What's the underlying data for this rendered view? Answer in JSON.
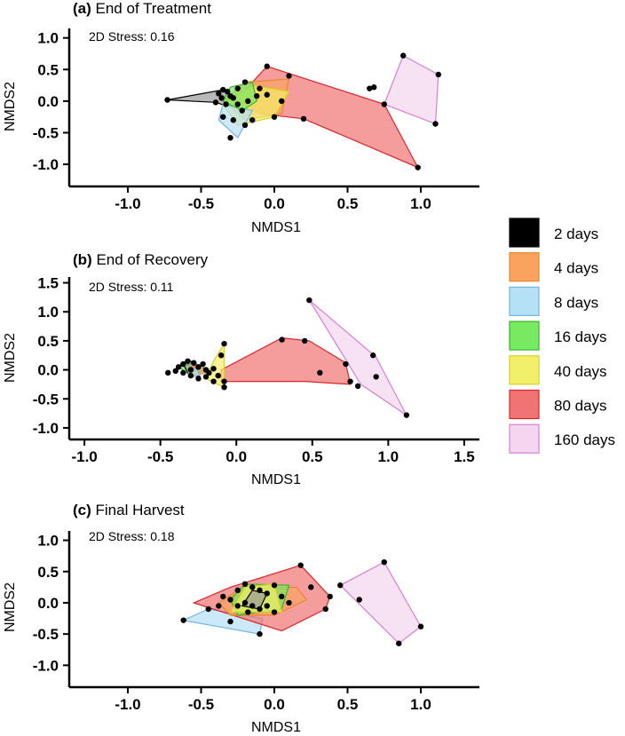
{
  "chart_data": [
    {
      "type": "scatter",
      "panel_label": "(a)",
      "title": "End of Treatment",
      "stress_text": "2D Stress: 0.16",
      "xlabel": "NMDS1",
      "ylabel": "NMDS2",
      "xlim": [
        -1.4,
        1.4
      ],
      "ylim": [
        -1.35,
        1.15
      ],
      "xticks": [
        -1.0,
        -0.5,
        0.0,
        0.5,
        1.0
      ],
      "xtick_labels": [
        "-1.0",
        "-0.5",
        "0.0",
        "0.5",
        "1.0"
      ],
      "yticks": [
        1.0,
        0.5,
        0.0,
        -0.5,
        -1.0
      ],
      "ytick_labels": [
        "1.0",
        "0.5",
        "0.0",
        "-0.5",
        "-1.0"
      ],
      "hulls": [
        {
          "group": "2 days",
          "points": [
            [
              -0.73,
              0.02
            ],
            [
              -0.35,
              0.18
            ],
            [
              -0.3,
              0.08
            ],
            [
              -0.32,
              -0.08
            ],
            [
              -0.4,
              -0.02
            ]
          ]
        },
        {
          "group": "80 days",
          "points": [
            [
              -0.05,
              0.55
            ],
            [
              0.75,
              -0.05
            ],
            [
              0.98,
              -1.05
            ],
            [
              0.2,
              -0.28
            ],
            [
              -0.1,
              -0.2
            ],
            [
              -0.25,
              0.05
            ],
            [
              -0.15,
              0.3
            ]
          ]
        },
        {
          "group": "4 days",
          "points": [
            [
              -0.2,
              0.3
            ],
            [
              0.1,
              0.35
            ],
            [
              0.05,
              -0.2
            ],
            [
              -0.2,
              -0.3
            ],
            [
              -0.35,
              0.0
            ]
          ]
        },
        {
          "group": "40 days",
          "points": [
            [
              -0.15,
              0.25
            ],
            [
              0.1,
              0.15
            ],
            [
              0.0,
              -0.25
            ],
            [
              -0.25,
              -0.38
            ],
            [
              -0.35,
              -0.05
            ]
          ]
        },
        {
          "group": "8 days",
          "points": [
            [
              -0.35,
              -0.05
            ],
            [
              -0.15,
              -0.15
            ],
            [
              -0.25,
              -0.58
            ],
            [
              -0.38,
              -0.3
            ]
          ]
        },
        {
          "group": "16 days",
          "points": [
            [
              -0.3,
              0.22
            ],
            [
              -0.15,
              0.3
            ],
            [
              -0.12,
              0.0
            ],
            [
              -0.22,
              -0.15
            ],
            [
              -0.35,
              0.0
            ]
          ]
        },
        {
          "group": "160 days",
          "points": [
            [
              0.88,
              0.72
            ],
            [
              1.12,
              0.42
            ],
            [
              1.1,
              -0.36
            ],
            [
              0.75,
              -0.05
            ]
          ]
        }
      ],
      "points": [
        [
          -0.73,
          0.02
        ],
        [
          -0.38,
          0.12
        ],
        [
          -0.35,
          0.18
        ],
        [
          -0.32,
          0.15
        ],
        [
          -0.3,
          0.08
        ],
        [
          -0.33,
          -0.05
        ],
        [
          -0.4,
          -0.02
        ],
        [
          -0.36,
          0.05
        ],
        [
          -0.05,
          0.55
        ],
        [
          0.1,
          0.4
        ],
        [
          0.2,
          -0.28
        ],
        [
          0.65,
          0.2
        ],
        [
          0.68,
          0.22
        ],
        [
          0.75,
          -0.05
        ],
        [
          0.98,
          -1.05
        ],
        [
          -0.2,
          0.3
        ],
        [
          -0.1,
          0.2
        ],
        [
          -0.05,
          0.1
        ],
        [
          0.05,
          0.0
        ],
        [
          0.0,
          -0.25
        ],
        [
          -0.15,
          -0.3
        ],
        [
          -0.2,
          -0.38
        ],
        [
          -0.25,
          -0.05
        ],
        [
          -0.3,
          -0.58
        ],
        [
          -0.35,
          -0.25
        ],
        [
          -0.28,
          -0.3
        ],
        [
          -0.22,
          -0.15
        ],
        [
          -0.25,
          0.2
        ],
        [
          -0.18,
          0.0
        ],
        [
          -0.12,
          0.08
        ],
        [
          -0.28,
          0.05
        ],
        [
          0.88,
          0.72
        ],
        [
          1.12,
          0.42
        ],
        [
          1.1,
          -0.36
        ]
      ]
    },
    {
      "type": "scatter",
      "panel_label": "(b)",
      "title": "End of Recovery",
      "stress_text": "2D Stress: 0.11",
      "xlabel": "NMDS1",
      "ylabel": "NMDS2",
      "xlim": [
        -1.1,
        1.6
      ],
      "ylim": [
        -1.2,
        1.6
      ],
      "xticks": [
        -1.0,
        -0.5,
        0.0,
        0.5,
        1.0,
        1.5
      ],
      "xtick_labels": [
        "-1.0",
        "-0.5",
        "0.0",
        "0.5",
        "1.0",
        "1.5"
      ],
      "yticks": [
        1.5,
        1.0,
        0.5,
        0.0,
        -0.5,
        -1.0
      ],
      "ytick_labels": [
        "1.5",
        "1.0",
        "0.5",
        "0.0",
        "-0.5",
        "-1.0"
      ],
      "hulls": [
        {
          "group": "80 days",
          "points": [
            [
              -0.1,
              0.0
            ],
            [
              0.3,
              0.55
            ],
            [
              0.48,
              0.5
            ],
            [
              0.72,
              0.12
            ],
            [
              0.75,
              -0.25
            ],
            [
              0.45,
              -0.2
            ],
            [
              -0.1,
              -0.2
            ]
          ]
        },
        {
          "group": "160 days",
          "points": [
            [
              0.48,
              1.2
            ],
            [
              0.92,
              0.22
            ],
            [
              1.12,
              -0.78
            ],
            [
              0.82,
              -0.25
            ]
          ]
        },
        {
          "group": "40 days",
          "points": [
            [
              -0.08,
              0.45
            ],
            [
              -0.08,
              -0.3
            ],
            [
              -0.2,
              -0.15
            ],
            [
              -0.15,
              0.15
            ]
          ]
        },
        {
          "group": "16 days",
          "points": [
            [
              -0.38,
              0.05
            ],
            [
              -0.28,
              0.12
            ],
            [
              -0.2,
              0.0
            ],
            [
              -0.3,
              -0.1
            ]
          ]
        },
        {
          "group": "2 days",
          "points": [
            [
              -0.35,
              0.1
            ],
            [
              -0.3,
              0.15
            ],
            [
              -0.25,
              0.0
            ],
            [
              -0.32,
              -0.05
            ]
          ]
        },
        {
          "group": "4 days",
          "points": [
            [
              -0.3,
              0.05
            ],
            [
              -0.22,
              0.08
            ],
            [
              -0.2,
              -0.05
            ],
            [
              -0.28,
              -0.1
            ]
          ]
        },
        {
          "group": "8 days",
          "points": [
            [
              -0.32,
              -0.02
            ],
            [
              -0.26,
              0.02
            ],
            [
              -0.24,
              -0.1
            ],
            [
              -0.3,
              -0.12
            ]
          ]
        }
      ],
      "points": [
        [
          0.48,
          1.2
        ],
        [
          0.3,
          0.52
        ],
        [
          0.45,
          0.5
        ],
        [
          0.72,
          0.1
        ],
        [
          0.55,
          -0.05
        ],
        [
          0.75,
          -0.2
        ],
        [
          0.8,
          -0.28
        ],
        [
          0.9,
          0.25
        ],
        [
          0.92,
          -0.12
        ],
        [
          1.12,
          -0.78
        ],
        [
          -0.08,
          0.45
        ],
        [
          -0.1,
          0.25
        ],
        [
          -0.08,
          -0.2
        ],
        [
          -0.08,
          -0.3
        ],
        [
          -0.45,
          -0.05
        ],
        [
          -0.4,
          -0.02
        ],
        [
          -0.38,
          0.05
        ],
        [
          -0.35,
          0.1
        ],
        [
          -0.32,
          0.15
        ],
        [
          -0.3,
          0.0
        ],
        [
          -0.28,
          0.12
        ],
        [
          -0.25,
          0.05
        ],
        [
          -0.22,
          0.1
        ],
        [
          -0.2,
          0.0
        ],
        [
          -0.18,
          -0.05
        ],
        [
          -0.15,
          0.02
        ],
        [
          -0.3,
          -0.1
        ],
        [
          -0.25,
          -0.15
        ],
        [
          -0.2,
          -0.12
        ],
        [
          -0.35,
          -0.05
        ],
        [
          -0.12,
          -0.1
        ],
        [
          -0.15,
          -0.2
        ]
      ]
    },
    {
      "type": "scatter",
      "panel_label": "(c)",
      "title": "Final Harvest",
      "stress_text": "2D Stress: 0.18",
      "xlabel": "NMDS1",
      "ylabel": "NMDS2",
      "xlim": [
        -1.4,
        1.4
      ],
      "ylim": [
        -1.35,
        1.15
      ],
      "xticks": [
        -1.0,
        -0.5,
        0.0,
        0.5,
        1.0
      ],
      "xtick_labels": [
        "-1.0",
        "-0.5",
        "0.0",
        "0.5",
        "1.0"
      ],
      "yticks": [
        1.0,
        0.5,
        0.0,
        -0.5,
        -1.0
      ],
      "ytick_labels": [
        "1.0",
        "0.5",
        "0.0",
        "-0.5",
        "-1.0"
      ],
      "hulls": [
        {
          "group": "8 days",
          "points": [
            [
              -0.62,
              -0.28
            ],
            [
              -0.45,
              -0.1
            ],
            [
              -0.08,
              -0.25
            ],
            [
              -0.1,
              -0.5
            ]
          ]
        },
        {
          "group": "80 days",
          "points": [
            [
              0.18,
              0.6
            ],
            [
              0.38,
              0.1
            ],
            [
              0.35,
              -0.1
            ],
            [
              0.05,
              -0.45
            ],
            [
              -0.55,
              0.0
            ],
            [
              -0.3,
              0.25
            ]
          ]
        },
        {
          "group": "4 days",
          "points": [
            [
              -0.25,
              0.2
            ],
            [
              0.15,
              0.25
            ],
            [
              0.22,
              0.05
            ],
            [
              0.0,
              -0.2
            ],
            [
              -0.3,
              -0.2
            ],
            [
              -0.38,
              0.0
            ]
          ]
        },
        {
          "group": "16 days",
          "points": [
            [
              -0.2,
              0.3
            ],
            [
              0.1,
              0.28
            ],
            [
              0.05,
              -0.1
            ],
            [
              -0.25,
              -0.2
            ],
            [
              -0.3,
              0.05
            ]
          ]
        },
        {
          "group": "40 days",
          "points": [
            [
              -0.2,
              0.25
            ],
            [
              0.0,
              0.3
            ],
            [
              0.05,
              -0.15
            ],
            [
              -0.3,
              -0.15
            ]
          ]
        },
        {
          "group": "2 days",
          "points": [
            [
              -0.15,
              0.2
            ],
            [
              -0.05,
              0.15
            ],
            [
              -0.1,
              -0.1
            ],
            [
              -0.22,
              -0.05
            ]
          ]
        },
        {
          "group": "160 days",
          "points": [
            [
              0.45,
              0.28
            ],
            [
              0.75,
              0.65
            ],
            [
              1.0,
              -0.38
            ],
            [
              0.85,
              -0.65
            ]
          ]
        }
      ],
      "points": [
        [
          -0.62,
          -0.28
        ],
        [
          -0.45,
          -0.1
        ],
        [
          -0.1,
          -0.5
        ],
        [
          -0.3,
          -0.3
        ],
        [
          0.18,
          0.6
        ],
        [
          0.38,
          0.1
        ],
        [
          0.35,
          -0.1
        ],
        [
          0.25,
          0.25
        ],
        [
          -0.25,
          0.2
        ],
        [
          -0.2,
          0.3
        ],
        [
          -0.15,
          0.25
        ],
        [
          -0.1,
          0.2
        ],
        [
          -0.05,
          0.15
        ],
        [
          0.0,
          0.28
        ],
        [
          0.05,
          0.1
        ],
        [
          0.1,
          0.0
        ],
        [
          -0.3,
          0.05
        ],
        [
          -0.25,
          -0.05
        ],
        [
          -0.2,
          0.0
        ],
        [
          -0.15,
          -0.05
        ],
        [
          -0.1,
          -0.1
        ],
        [
          -0.05,
          -0.05
        ],
        [
          0.0,
          -0.15
        ],
        [
          -0.18,
          -0.15
        ],
        [
          -0.38,
          -0.05
        ],
        [
          -0.35,
          0.1
        ],
        [
          0.45,
          0.28
        ],
        [
          0.75,
          0.65
        ],
        [
          0.58,
          0.05
        ],
        [
          1.0,
          -0.38
        ],
        [
          0.85,
          -0.65
        ]
      ]
    }
  ],
  "legend": {
    "items": [
      {
        "label": "2 days",
        "color": "#000000"
      },
      {
        "label": "4 days",
        "color": "#f9a35f"
      },
      {
        "label": "8 days",
        "color": "#b5e0f5"
      },
      {
        "label": "16 days",
        "color": "#77ea62"
      },
      {
        "label": "40 days",
        "color": "#f2f06a"
      },
      {
        "label": "80 days",
        "color": "#f17374"
      },
      {
        "label": "160 days",
        "color": "#f4d6f0"
      }
    ]
  },
  "group_colors": {
    "2 days": {
      "fill": "#9a9a9a",
      "stroke": "#000000"
    },
    "4 days": {
      "fill": "#f9a35f",
      "stroke": "#e7892e"
    },
    "8 days": {
      "fill": "#b5e0f5",
      "stroke": "#6fb7df"
    },
    "16 days": {
      "fill": "#77ea62",
      "stroke": "#37b52a"
    },
    "40 days": {
      "fill": "#f2f06a",
      "stroke": "#d8d21a"
    },
    "80 days": {
      "fill": "#f17374",
      "stroke": "#d9252a"
    },
    "160 days": {
      "fill": "#f4d6f0",
      "stroke": "#d77fd0"
    }
  }
}
